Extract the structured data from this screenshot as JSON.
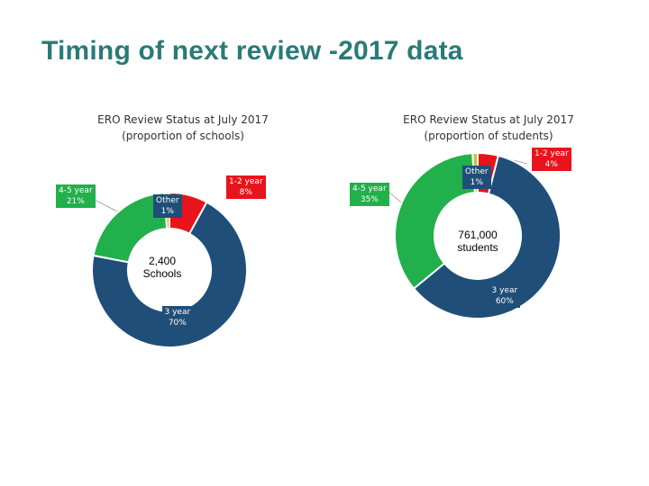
{
  "page": {
    "title": "Timing of next review -2017 data"
  },
  "colors": {
    "title": "#2a7a78",
    "1-2 year": "#e8141c",
    "3 year": "#1f4e79",
    "4-5 year": "#21b04b",
    "Other": "#c9c23a",
    "border": "#ffffff"
  },
  "chart_data": [
    {
      "type": "pie",
      "variant": "doughnut",
      "title": "ERO Review Status at July 2017",
      "subtitle": "(proportion of schools)",
      "center_label": [
        "2,400",
        "Schools"
      ],
      "slices": [
        {
          "label": "1-2 year",
          "value": 8,
          "display": "8%"
        },
        {
          "label": "3 year",
          "value": 70,
          "display": "70%"
        },
        {
          "label": "4-5 year",
          "value": 21,
          "display": "21%"
        },
        {
          "label": "Other",
          "value": 1,
          "display": "1%"
        }
      ]
    },
    {
      "type": "pie",
      "variant": "doughnut",
      "title": "ERO Review Status at July 2017",
      "subtitle": "(proportion of students)",
      "center_label": [
        "761,000",
        "students"
      ],
      "slices": [
        {
          "label": "1-2 year",
          "value": 4,
          "display": "4%"
        },
        {
          "label": "3 year",
          "value": 60,
          "display": "60%"
        },
        {
          "label": "4-5 year",
          "value": 35,
          "display": "35%"
        },
        {
          "label": "Other",
          "value": 1,
          "display": "1%"
        }
      ]
    }
  ]
}
